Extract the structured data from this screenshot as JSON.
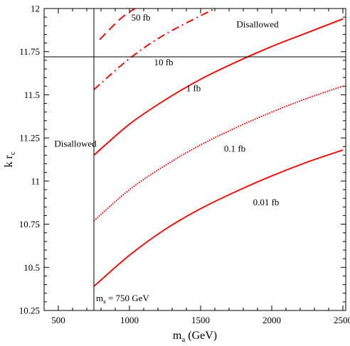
{
  "chart_data": {
    "type": "line",
    "title": "",
    "xlabel": "m_a (GeV)",
    "xlabel_main": "m",
    "xlabel_sub": "a",
    "xlabel_unit": " (GeV)",
    "ylabel": "k r_c",
    "ylabel_main": "k r",
    "ylabel_sub": "c",
    "xlim": [
      400,
      2520
    ],
    "ylim": [
      10.25,
      12.0
    ],
    "xticks": [
      500,
      1000,
      1500,
      2000,
      2500
    ],
    "xtick_labels": [
      "500",
      "1000",
      "1500",
      "2000",
      "2500"
    ],
    "yticks": [
      10.25,
      10.5,
      10.75,
      11.0,
      11.25,
      11.5,
      11.75,
      12.0
    ],
    "ytick_labels": [
      "10.25",
      "10.5",
      "10.75",
      "11",
      "11.25",
      "11.5",
      "11.75",
      "12"
    ],
    "grid": false,
    "colors": {
      "curve": "#ff0000",
      "line": "#000000"
    },
    "series": [
      {
        "name": "0.01 fb",
        "style": "solid",
        "x": [
          750,
          1000,
          1250,
          1500,
          1750,
          2000,
          2250,
          2500
        ],
        "y": [
          10.39,
          10.57,
          10.72,
          10.84,
          10.94,
          11.03,
          11.11,
          11.18
        ]
      },
      {
        "name": "0.1 fb",
        "style": "dotted",
        "x": [
          750,
          1000,
          1250,
          1500,
          1750,
          2000,
          2250,
          2500
        ],
        "y": [
          10.77,
          10.95,
          11.09,
          11.21,
          11.31,
          11.4,
          11.48,
          11.55
        ]
      },
      {
        "name": "1 fb",
        "style": "solid",
        "x": [
          750,
          1000,
          1250,
          1500,
          1750,
          2000,
          2250,
          2500
        ],
        "y": [
          11.15,
          11.33,
          11.47,
          11.59,
          11.69,
          11.78,
          11.86,
          11.94
        ]
      },
      {
        "name": "10 fb",
        "style": "dashdot",
        "x": [
          750,
          1000,
          1250,
          1600
        ],
        "y": [
          11.53,
          11.71,
          11.85,
          12.0
        ]
      },
      {
        "name": "50 fb",
        "style": "dashed",
        "x": [
          790,
          950,
          1080
        ],
        "y": [
          11.82,
          11.95,
          12.02
        ]
      }
    ],
    "vline": {
      "x": 750,
      "label_main": "m",
      "label_sub": "a",
      "label_rest": " = 750 GeV"
    },
    "hline": {
      "y": 11.72
    },
    "annotations": [
      {
        "text": "50 fb",
        "x": 1080,
        "y": 11.93
      },
      {
        "text": "10 fb",
        "x": 1240,
        "y": 11.67
      },
      {
        "text": "1 fb",
        "x": 1450,
        "y": 11.52
      },
      {
        "text": "0.1 fb",
        "x": 1740,
        "y": 11.17
      },
      {
        "text": "0.01 fb",
        "x": 1960,
        "y": 10.86
      },
      {
        "text": "Disallowed",
        "x": 1900,
        "y": 11.89
      },
      {
        "text": "Disallowed",
        "x": 620,
        "y": 11.2
      }
    ]
  }
}
